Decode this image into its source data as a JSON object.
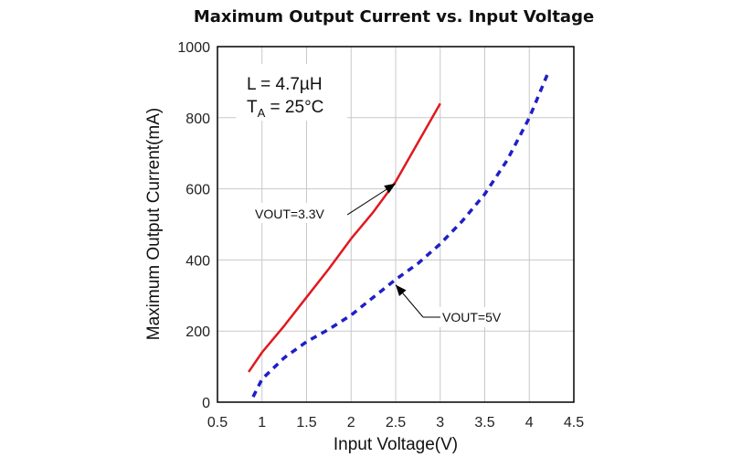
{
  "chart_data": {
    "type": "line",
    "title": "Maximum Output Current vs. Input Voltage",
    "xlabel": "Input Voltage(V)",
    "ylabel": "Maximum Output Current(mA)",
    "xlim": [
      0.5,
      4.5
    ],
    "ylim": [
      0,
      1000
    ],
    "xticks": [
      "0.5",
      "1",
      "1.5",
      "2",
      "2.5",
      "3",
      "3.5",
      "4",
      "4.5"
    ],
    "yticks": [
      "0",
      "200",
      "400",
      "600",
      "800",
      "1000"
    ],
    "grid": true,
    "params": {
      "inductor": "L = 4.7µH",
      "temp_prefix": "T",
      "temp_sub": "A",
      "temp_value": " = 25°C"
    },
    "series": [
      {
        "name": "VOUT=3.3V",
        "color": "#e0191f",
        "style": "solid",
        "x": [
          0.85,
          1.0,
          1.25,
          1.5,
          1.75,
          2.0,
          2.25,
          2.5,
          2.75,
          3.0
        ],
        "y": [
          85,
          140,
          215,
          295,
          375,
          460,
          535,
          620,
          730,
          840
        ]
      },
      {
        "name": "VOUT=5V",
        "color": "#1f1fc8",
        "style": "dashed",
        "x": [
          0.9,
          1.0,
          1.25,
          1.5,
          1.75,
          2.0,
          2.25,
          2.5,
          2.75,
          3.0,
          3.25,
          3.5,
          3.75,
          4.0,
          4.2
        ],
        "y": [
          15,
          65,
          125,
          170,
          205,
          245,
          295,
          345,
          390,
          445,
          510,
          585,
          680,
          800,
          920
        ]
      }
    ],
    "annotations": [
      {
        "text": "VOUT=3.3V",
        "series": 0,
        "point_x": 2.5,
        "point_y": 615
      },
      {
        "text": "VOUT=5V",
        "series": 1,
        "point_x": 2.5,
        "point_y": 330
      }
    ]
  }
}
